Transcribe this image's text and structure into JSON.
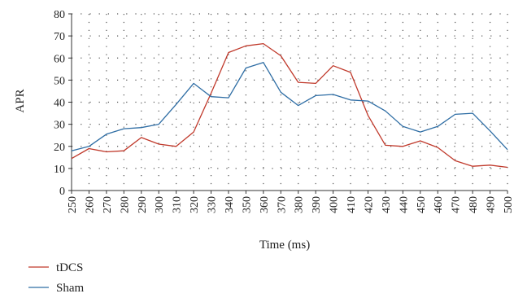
{
  "chart_data": {
    "type": "line",
    "xlabel": "Time (ms)",
    "ylabel": "APR",
    "xlim": [
      250,
      500
    ],
    "ylim": [
      0,
      80
    ],
    "x_ticks": [
      250,
      260,
      270,
      280,
      290,
      300,
      310,
      320,
      330,
      340,
      350,
      360,
      370,
      380,
      390,
      400,
      410,
      420,
      430,
      440,
      450,
      460,
      470,
      480,
      490,
      500
    ],
    "y_ticks": [
      0,
      10,
      20,
      30,
      40,
      50,
      60,
      70,
      80
    ],
    "grid": true,
    "legend_position": "bottom-left",
    "x": [
      250,
      260,
      270,
      280,
      290,
      300,
      310,
      320,
      330,
      340,
      350,
      360,
      370,
      380,
      390,
      400,
      410,
      420,
      430,
      440,
      450,
      460,
      470,
      480,
      490,
      500
    ],
    "series": [
      {
        "name": "tDCS",
        "color": "#c0392b",
        "values": [
          14.5,
          19,
          17.5,
          18,
          24,
          21,
          20,
          26.5,
          44,
          62.5,
          65.5,
          66.5,
          61,
          49,
          48.5,
          56.5,
          53.5,
          34,
          20.5,
          20,
          22.5,
          19.5,
          13.5,
          11,
          11.5,
          10.5
        ]
      },
      {
        "name": "Sham",
        "color": "#2e6da4",
        "values": [
          18,
          20,
          25.5,
          28,
          28.5,
          30,
          39,
          48.5,
          42.5,
          42,
          55.5,
          58,
          44.5,
          38.5,
          43,
          43.5,
          41,
          40.5,
          36,
          29,
          26.5,
          29,
          34.5,
          35,
          27,
          18.5
        ]
      }
    ]
  }
}
